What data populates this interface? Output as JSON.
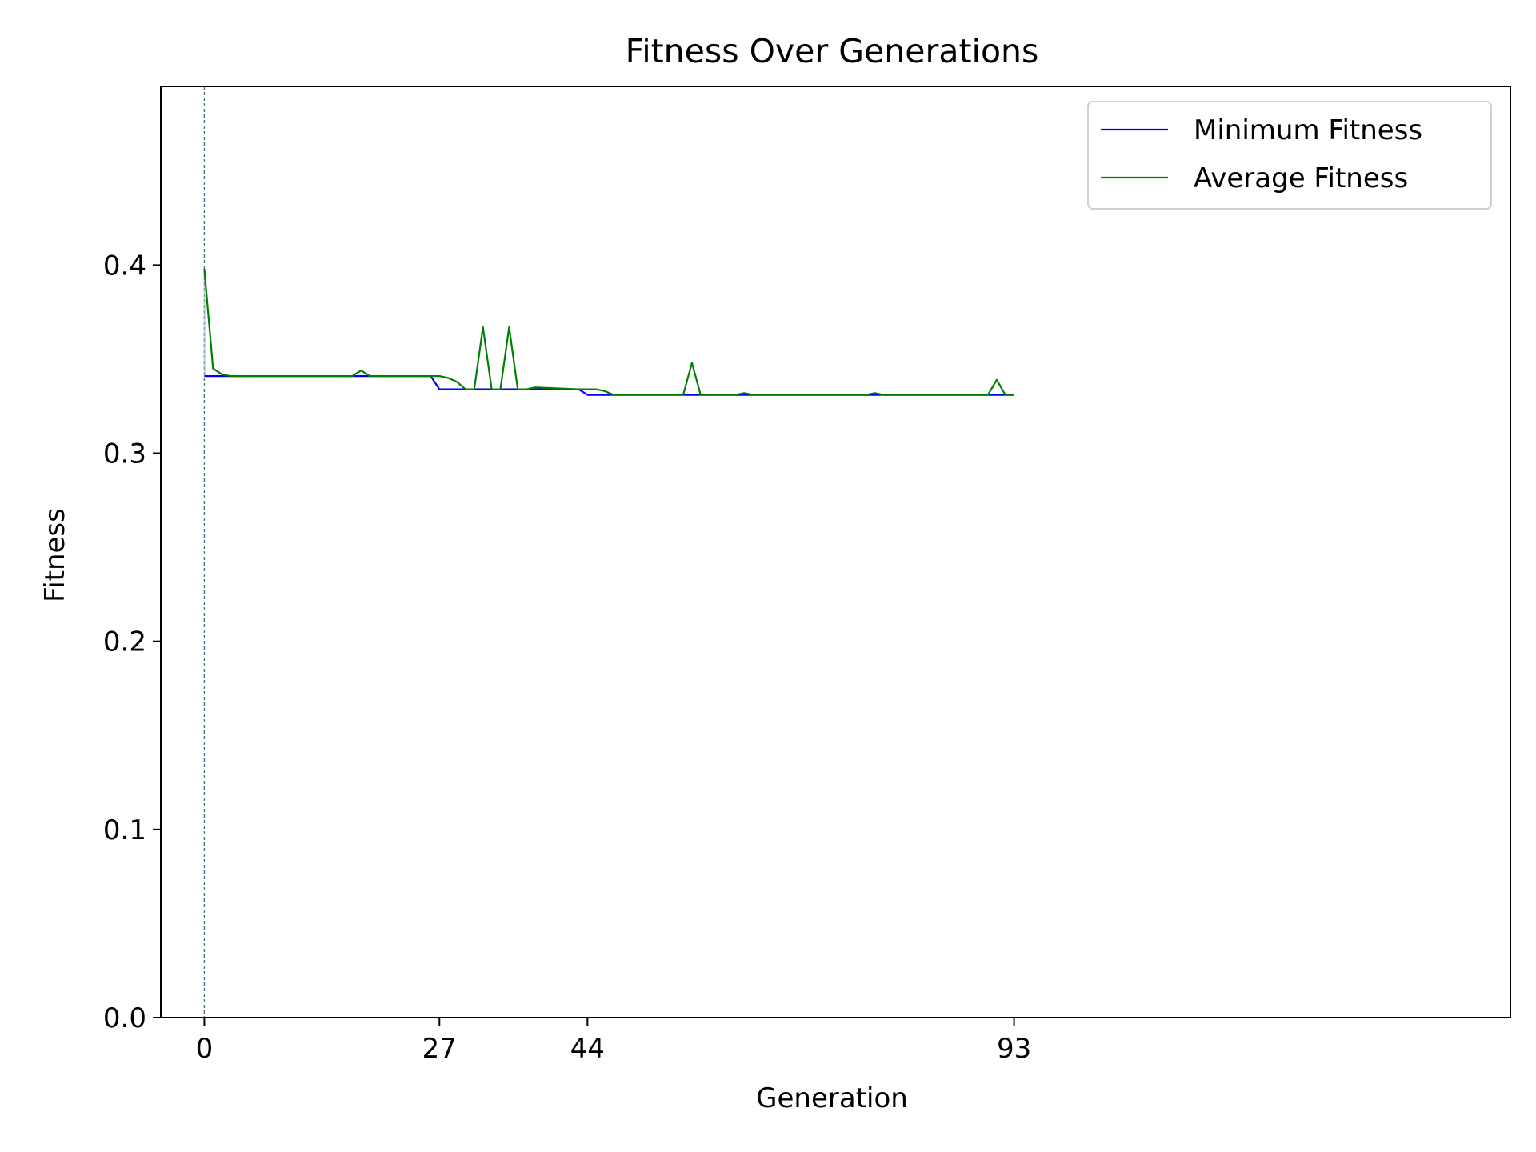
{
  "chart_data": {
    "type": "line",
    "title": "Fitness Over Generations",
    "xlabel": "Generation",
    "ylabel": "Fitness",
    "xlim": [
      -5,
      150
    ],
    "ylim": [
      0,
      0.495
    ],
    "xticks": [
      0,
      27,
      44,
      93
    ],
    "yticks": [
      0.0,
      0.1,
      0.2,
      0.3,
      0.4
    ],
    "ytick_labels": [
      "0.0",
      "0.1",
      "0.2",
      "0.3",
      "0.4"
    ],
    "grid": false,
    "legend_position": "top-right",
    "marker_line_x": 0,
    "colors": {
      "min": "#0000ff",
      "avg": "#008000",
      "marker": "#4a6a80"
    },
    "series": [
      {
        "name": "Minimum Fitness",
        "color": "#0000ff",
        "x": [
          0,
          1,
          17,
          18,
          26,
          27,
          43,
          44,
          56,
          93
        ],
        "y": [
          0.341,
          0.341,
          0.341,
          0.341,
          0.341,
          0.334,
          0.334,
          0.331,
          0.331,
          0.331
        ]
      },
      {
        "name": "Average Fitness",
        "color": "#008000",
        "x": [
          0,
          1,
          2,
          3,
          4,
          17,
          18,
          19,
          20,
          26,
          27,
          28,
          29,
          30,
          31,
          32,
          33,
          34,
          35,
          36,
          37,
          38,
          43,
          44,
          45,
          46,
          47,
          48,
          50,
          51,
          55,
          56,
          57,
          58,
          60,
          61,
          62,
          63,
          64,
          66,
          68,
          70,
          76,
          77,
          78,
          90,
          91,
          92,
          93
        ],
        "y": [
          0.398,
          0.345,
          0.342,
          0.341,
          0.341,
          0.341,
          0.344,
          0.341,
          0.341,
          0.341,
          0.341,
          0.34,
          0.338,
          0.334,
          0.334,
          0.367,
          0.334,
          0.334,
          0.367,
          0.334,
          0.334,
          0.335,
          0.334,
          0.334,
          0.334,
          0.333,
          0.331,
          0.331,
          0.331,
          0.331,
          0.331,
          0.348,
          0.331,
          0.331,
          0.331,
          0.331,
          0.332,
          0.331,
          0.331,
          0.331,
          0.331,
          0.331,
          0.331,
          0.332,
          0.331,
          0.331,
          0.339,
          0.331,
          0.331
        ]
      }
    ]
  }
}
